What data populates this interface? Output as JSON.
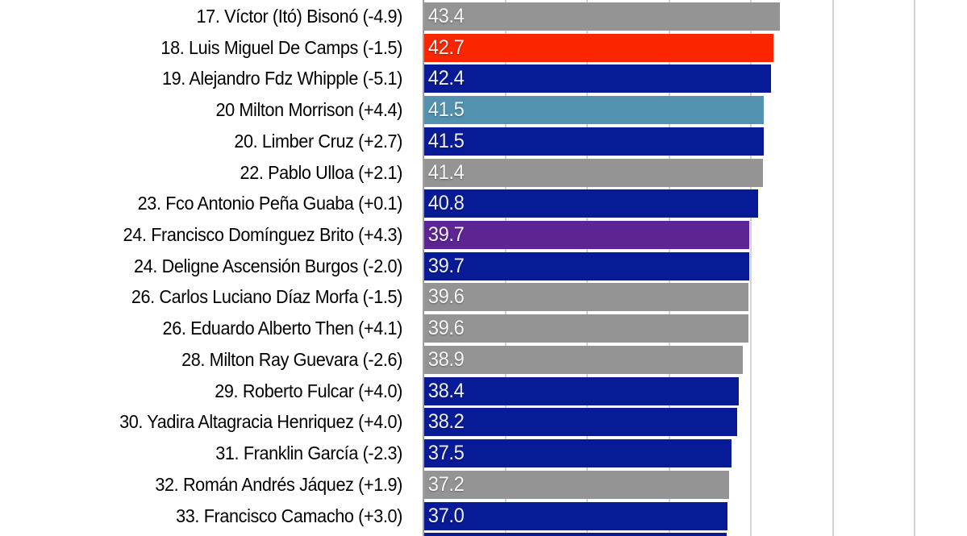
{
  "chart_data": {
    "type": "bar",
    "orientation": "horizontal",
    "title": "",
    "subtitle": "",
    "xlabel": "",
    "ylabel": "",
    "xlim": [
      0,
      66.4
    ],
    "gridline_values": [
      0,
      10,
      20,
      30,
      40,
      50,
      60
    ],
    "grid": "vertical",
    "legend": "none",
    "value_label_position": "inside-start",
    "palette": {
      "gray": "#949494",
      "red": "#fb2500",
      "navy": "#081b96",
      "steel_blue": "#5292ae",
      "purple": "#5d2494"
    },
    "rows": [
      {
        "label": "17. Víctor (Itó) Bisonó (-4.9)",
        "value": 43.4,
        "value_label": "43.4",
        "color": "gray"
      },
      {
        "label": "18. Luis Miguel De Camps (-1.5)",
        "value": 42.7,
        "value_label": "42.7",
        "color": "red"
      },
      {
        "label": "19. Alejandro Fdz Whipple (-5.1)",
        "value": 42.4,
        "value_label": "42.4",
        "color": "navy"
      },
      {
        "label": "20 Milton Morrison (+4.4)",
        "value": 41.5,
        "value_label": "41.5",
        "color": "steel_blue"
      },
      {
        "label": "20. Limber Cruz (+2.7)",
        "value": 41.5,
        "value_label": "41.5",
        "color": "navy"
      },
      {
        "label": "22. Pablo Ulloa (+2.1)",
        "value": 41.4,
        "value_label": "41.4",
        "color": "gray"
      },
      {
        "label": "23. Fco Antonio Peña Guaba (+0.1)",
        "value": 40.8,
        "value_label": "40.8",
        "color": "navy"
      },
      {
        "label": "24. Francisco Domínguez Brito (+4.3)",
        "value": 39.7,
        "value_label": "39.7",
        "color": "purple"
      },
      {
        "label": "24. Deligne Ascensión Burgos (-2.0)",
        "value": 39.7,
        "value_label": "39.7",
        "color": "navy"
      },
      {
        "label": "26. Carlos Luciano Díaz Morfa (-1.5)",
        "value": 39.6,
        "value_label": "39.6",
        "color": "gray"
      },
      {
        "label": "26. Eduardo Alberto Then (+4.1)",
        "value": 39.6,
        "value_label": "39.6",
        "color": "gray"
      },
      {
        "label": "28. Milton Ray Guevara (-2.6)",
        "value": 38.9,
        "value_label": "38.9",
        "color": "gray"
      },
      {
        "label": "29. Roberto Fulcar (+4.0)",
        "value": 38.4,
        "value_label": "38.4",
        "color": "navy"
      },
      {
        "label": "30. Yadira Altagracia Henriquez (+4.0)",
        "value": 38.2,
        "value_label": "38.2",
        "color": "navy"
      },
      {
        "label": "31. Franklin García (-2.3)",
        "value": 37.5,
        "value_label": "37.5",
        "color": "navy"
      },
      {
        "label": "32. Román Andrés Jáquez (+1.9)",
        "value": 37.2,
        "value_label": "37.2",
        "color": "gray"
      },
      {
        "label": "33. Francisco Camacho (+3.0)",
        "value": 37.0,
        "value_label": "37.0",
        "color": "navy"
      }
    ],
    "partial_next_row": {
      "value": 36.9,
      "color": "navy"
    }
  },
  "colors": {
    "background": "#ffffff",
    "axis_line": "#9e9e9e",
    "gridline": "#d4d4d4",
    "label_text": "#000000",
    "value_text": "#ffffff"
  }
}
